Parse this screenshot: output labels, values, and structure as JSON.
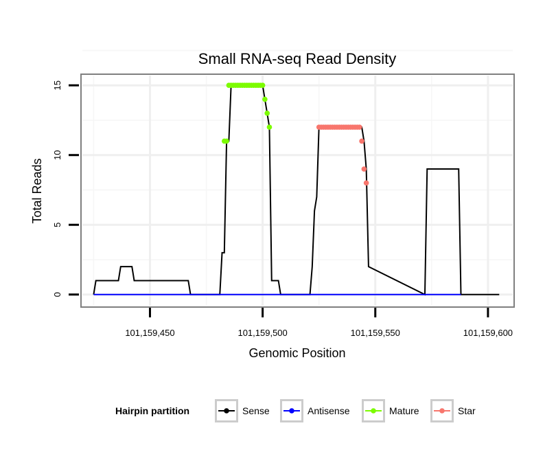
{
  "chart_data": {
    "type": "line",
    "title": "Small RNA-seq Read Density",
    "xlabel": "Genomic Position",
    "ylabel": "Total Reads",
    "xlim": [
      101159420,
      101159611
    ],
    "ylim": [
      -0.8,
      15.7
    ],
    "x_ticks": [
      101159450,
      101159500,
      101159550,
      101159600
    ],
    "x_tick_labels": [
      "101,159,450",
      "101,159,500",
      "101,159,550",
      "101,159,600"
    ],
    "y_ticks": [
      0,
      5,
      10,
      15
    ],
    "y_tick_labels": [
      "0",
      "5",
      "10",
      "15"
    ],
    "legend": {
      "title": "Hairpin partition",
      "position": "bottom"
    },
    "series": [
      {
        "name": "Sense",
        "color": "#000000",
        "marker": "line",
        "x": [
          101159425,
          101159426,
          101159436,
          101159437,
          101159442,
          101159443,
          101159467,
          101159468,
          101159481,
          101159482,
          101159483,
          101159484,
          101159485,
          101159486,
          101159500,
          101159501,
          101159502,
          101159503,
          101159504,
          101159507,
          101159508,
          101159521,
          101159522,
          101159523,
          101159524,
          101159525,
          101159526,
          101159527,
          101159544,
          101159545,
          101159546,
          101159547,
          101159572,
          101159573,
          101159587,
          101159588,
          101159605
        ],
        "y": [
          0,
          1,
          1,
          2,
          2,
          1,
          1,
          0,
          0,
          3,
          3,
          11,
          11,
          15,
          15,
          14,
          13,
          12,
          1,
          1,
          0,
          0,
          2,
          6,
          7,
          12,
          12,
          12,
          12,
          11,
          9,
          2,
          0,
          9,
          9,
          0,
          0
        ]
      },
      {
        "name": "Antisense",
        "color": "#0000ff",
        "marker": "line",
        "x": [
          101159425,
          101159588
        ],
        "y": [
          0,
          0
        ]
      },
      {
        "name": "Mature",
        "color": "#7cfc00",
        "marker": "points",
        "x": [
          101159483,
          101159484,
          101159485,
          101159486,
          101159487,
          101159488,
          101159489,
          101159490,
          101159491,
          101159492,
          101159493,
          101159494,
          101159495,
          101159496,
          101159497,
          101159498,
          101159499,
          101159500,
          101159501,
          101159502,
          101159503
        ],
        "y": [
          11,
          11,
          15,
          15,
          15,
          15,
          15,
          15,
          15,
          15,
          15,
          15,
          15,
          15,
          15,
          15,
          15,
          15,
          14,
          13,
          12
        ]
      },
      {
        "name": "Star",
        "color": "#f8766d",
        "marker": "points",
        "x": [
          101159525,
          101159526,
          101159527,
          101159528,
          101159529,
          101159530,
          101159531,
          101159532,
          101159533,
          101159534,
          101159535,
          101159536,
          101159537,
          101159538,
          101159539,
          101159540,
          101159541,
          101159542,
          101159543,
          101159544,
          101159545,
          101159546
        ],
        "y": [
          12,
          12,
          12,
          12,
          12,
          12,
          12,
          12,
          12,
          12,
          12,
          12,
          12,
          12,
          12,
          12,
          12,
          12,
          12,
          11,
          9,
          8
        ]
      }
    ]
  }
}
